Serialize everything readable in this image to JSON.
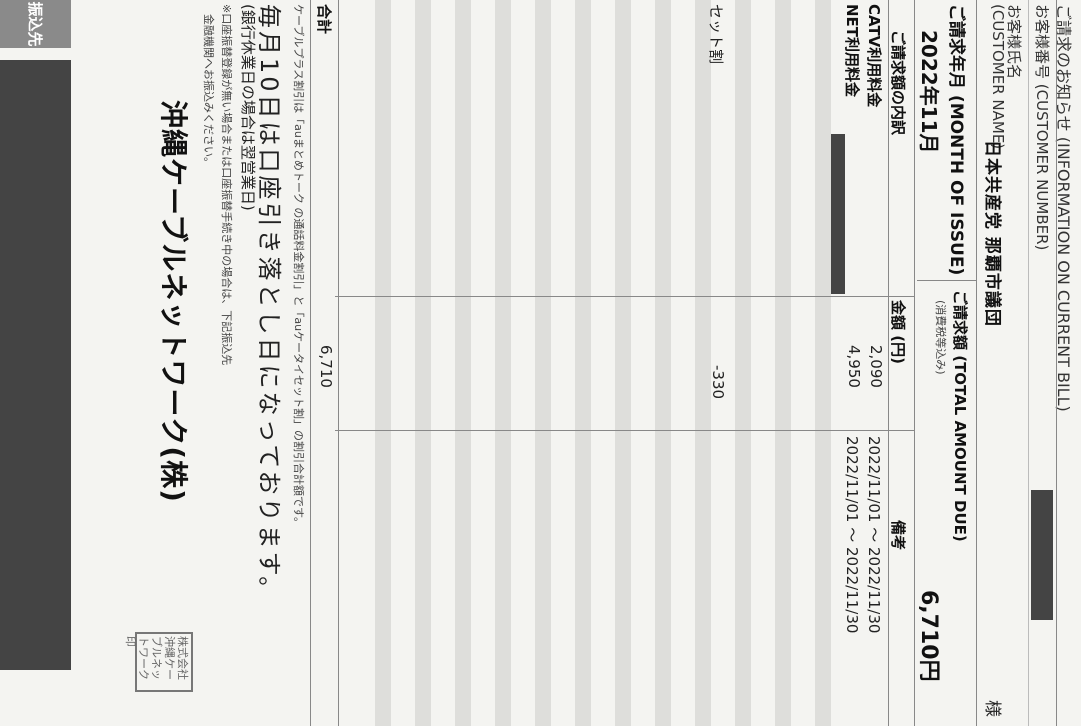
{
  "header": {
    "notice": "ご請求のお知らせ (INFORMATION ON CURRENT BILL)",
    "customer_number_label": "お客様番号 (CUSTOMER NUMBER)",
    "customer_name_label": "お客様氏名",
    "customer_name_label_en": "(CUSTOMER NAME)",
    "customer_name": "日本共産党 那覇市議団",
    "honorific": "様"
  },
  "billing": {
    "month_label": "ご請求年月 (MONTH OF ISSUE)",
    "month_value": "2022年11月",
    "total_label": "ご請求額 (TOTAL AMOUNT DUE)",
    "total_note": "(消費税等込み)",
    "total_value": "6,710円"
  },
  "table": {
    "headers": [
      "ご請求額の内訳",
      "金額 (円)",
      "備考"
    ],
    "rows": [
      {
        "item": "CATV利用料金",
        "amount": "2,090",
        "note": "2022/11/01 ～ 2022/11/30"
      },
      {
        "item": "NET利用料金",
        "amount": "4,950",
        "note": "2022/11/01 ～ 2022/11/30"
      }
    ],
    "discount": {
      "item": "セット割",
      "amount": "-330"
    },
    "total": {
      "item": "合計",
      "amount": "6,710"
    }
  },
  "footer": {
    "discount_note": "ケーブルプラス割引は「auまとめトーク の通話料金割引」と「auケータイセット割」の割引合計額です。",
    "debit_notice": "毎月10日は口座引き落とし日になっております。",
    "bank_holiday": "(銀行休業日の場合は翌営業日)",
    "note1": "※口座振替登録が無い場合または口座振替手続き中の場合は、下記振込先",
    "note2": "金融機関へお振込みください。",
    "company": "沖縄ケーブルネットワーク(株)",
    "seal": "株式会社 沖縄ケーブルネットワーク 印"
  },
  "sidebar": {
    "label": "振込先"
  },
  "colors": {
    "redaction": "#444444",
    "sidebar_bg": "#8a8a8a"
  }
}
